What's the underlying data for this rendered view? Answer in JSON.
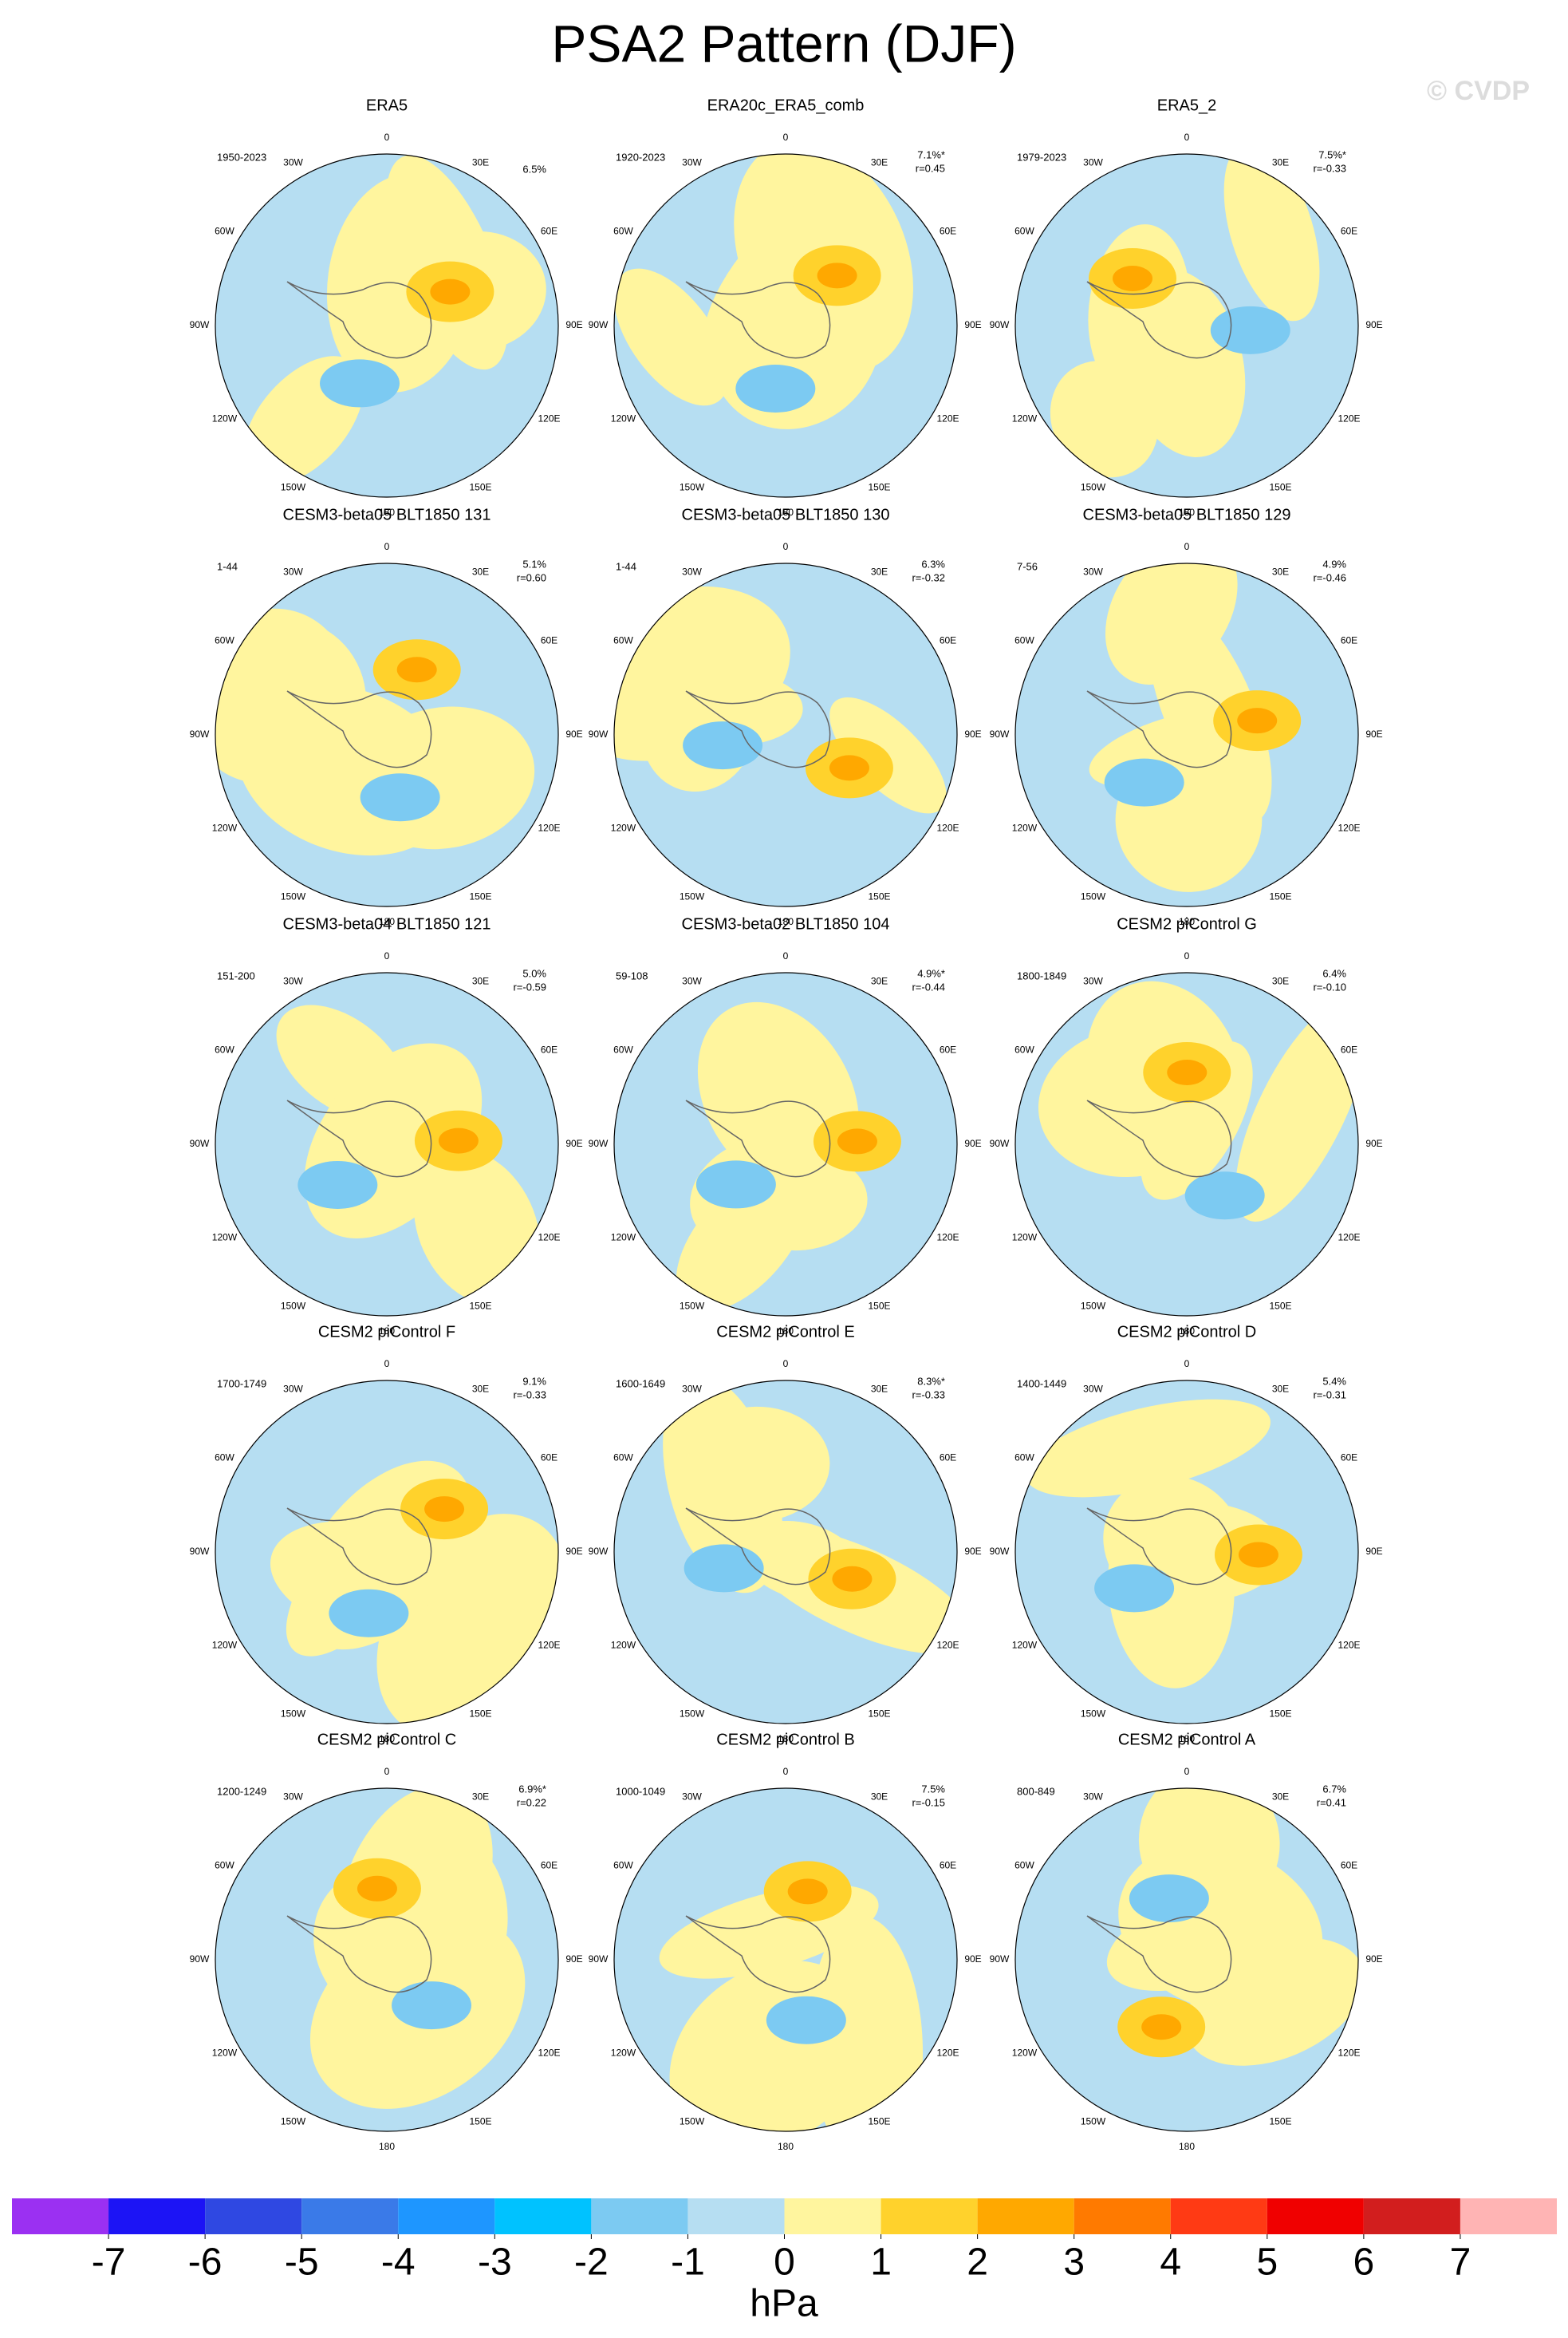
{
  "title": "PSA2 Pattern (DJF)",
  "watermark": "© CVDP",
  "panels": [
    {
      "title": "ERA5",
      "period": "1950-2023",
      "percent": "6.5%"
    },
    {
      "title": "ERA20c_ERA5_comb",
      "period": "1920-2023",
      "percent": "7.1%*",
      "r": "r=0.45"
    },
    {
      "title": "ERA5_2",
      "period": "1979-2023",
      "percent": "7.5%*",
      "r": "r=-0.33"
    },
    {
      "title": "CESM3-beta05 BLT1850 131",
      "period": "1-44",
      "percent": "5.1%",
      "r": "r=0.60"
    },
    {
      "title": "CESM3-beta05 BLT1850 130",
      "period": "1-44",
      "percent": "6.3%",
      "r": "r=-0.32"
    },
    {
      "title": "CESM3-beta05 BLT1850 129",
      "period": "7-56",
      "percent": "4.9%",
      "r": "r=-0.46"
    },
    {
      "title": "CESM3-beta04 BLT1850 121",
      "period": "151-200",
      "percent": "5.0%",
      "r": "r=-0.59"
    },
    {
      "title": "CESM3-beta02 BLT1850 104",
      "period": "59-108",
      "percent": "4.9%*",
      "r": "r=-0.44"
    },
    {
      "title": "CESM2 piControl G",
      "period": "1800-1849",
      "percent": "6.4%",
      "r": "r=-0.10"
    },
    {
      "title": "CESM2 piControl F",
      "period": "1700-1749",
      "percent": "9.1%",
      "r": "r=-0.33"
    },
    {
      "title": "CESM2 piControl E",
      "period": "1600-1649",
      "percent": "8.3%*",
      "r": "r=-0.33"
    },
    {
      "title": "CESM2 piControl D",
      "period": "1400-1449",
      "percent": "5.4%",
      "r": "r=-0.31"
    },
    {
      "title": "CESM2 piControl C",
      "period": "1200-1249",
      "percent": "6.9%*",
      "r": "r=0.22"
    },
    {
      "title": "CESM2 piControl B",
      "period": "1000-1049",
      "percent": "7.5%",
      "r": "r=-0.15"
    },
    {
      "title": "CESM2 piControl A",
      "period": "800-849",
      "percent": "6.7%",
      "r": "r=0.41"
    }
  ],
  "longitude_labels": [
    "0",
    "30E",
    "60E",
    "90E",
    "120E",
    "150E",
    "180",
    "150W",
    "120W",
    "90W",
    "60W",
    "30W"
  ],
  "colorbar": {
    "ticks": [
      -7,
      -6,
      -5,
      -4,
      -3,
      -2,
      -1,
      0,
      1,
      2,
      3,
      4,
      5,
      6,
      7
    ],
    "colors": [
      "#9b30f2",
      "#1c14f5",
      "#2f48e2",
      "#3a7ae8",
      "#1e96ff",
      "#00c2ff",
      "#7ccaf2",
      "#b6def2",
      "#fff59e",
      "#ffd22c",
      "#ffa800",
      "#ff7a00",
      "#ff3a14",
      "#f00000",
      "#d21e1e",
      "#ffb4b4"
    ],
    "label": "hPa"
  }
}
